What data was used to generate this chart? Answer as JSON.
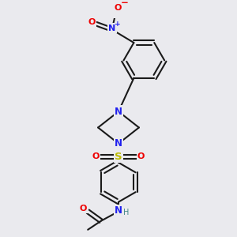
{
  "background_color": "#eaeaee",
  "bond_color": "#1a1a1a",
  "colors": {
    "N": "#2020ee",
    "O": "#ee0000",
    "S": "#bbbb00",
    "H_teal": "#448888",
    "C": "#1a1a1a"
  },
  "lw": 1.5,
  "fs": 8.5
}
